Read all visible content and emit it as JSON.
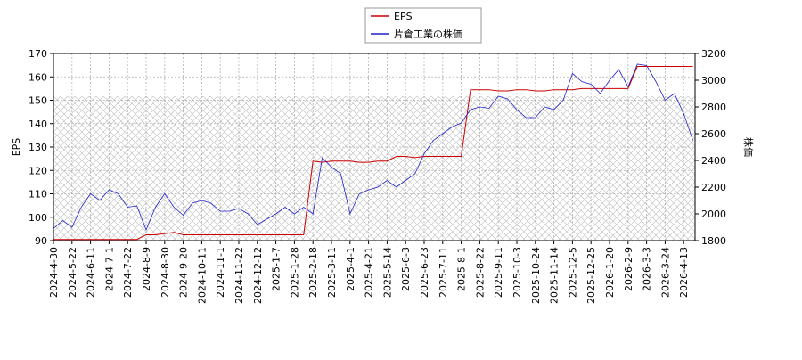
{
  "chart_data": {
    "type": "line",
    "categories": [
      "2024-4-30",
      null,
      "2024-5-22",
      null,
      "2024-6-11",
      null,
      "2024-7-1",
      null,
      "2024-7-22",
      null,
      "2024-8-9",
      null,
      "2024-8-30",
      null,
      "2024-9-20",
      null,
      "2024-10-11",
      null,
      "2024-11-1",
      null,
      "2024-11-22",
      null,
      "2024-12-12",
      null,
      "2025-1-7",
      null,
      "2025-1-28",
      null,
      "2025-2-18",
      null,
      "2025-3-11",
      null,
      "2025-4-1",
      null,
      "2025-4-21",
      null,
      "2025-5-14",
      null,
      "2025-6-3",
      null,
      "2025-6-23",
      null,
      "2025-7-11",
      null,
      "2025-8-1",
      null,
      "2025-8-22",
      null,
      "2025-9-11",
      null,
      "2025-10-3",
      null,
      "2025-10-24",
      null,
      "2025-11-14",
      null,
      "2025-12-5",
      null,
      "2025-12-25",
      null,
      "2026-1-20",
      null,
      "2026-2-9",
      null,
      "2026-3-3",
      null,
      "2026-3-24",
      null,
      "2026-4-13",
      null
    ],
    "series": [
      {
        "name": "EPS",
        "color": "#cc0000",
        "axis": "y",
        "values": [
          90.5,
          90.5,
          90.5,
          90.5,
          90.5,
          90.5,
          90.5,
          90.5,
          90.5,
          90.5,
          92.5,
          92.5,
          93,
          93.5,
          92.5,
          92.5,
          92.5,
          92.5,
          92.5,
          92.5,
          92.5,
          92.5,
          92.5,
          92.5,
          92.5,
          92.5,
          92.5,
          92.5,
          124,
          123.5,
          124,
          124,
          124,
          123.5,
          123.5,
          124,
          124,
          126,
          126,
          125.5,
          126,
          126,
          126,
          126,
          126,
          154.5,
          154.5,
          154.5,
          154,
          154,
          154.5,
          154.5,
          154,
          154,
          154.5,
          154.5,
          154.5,
          155,
          155,
          155,
          155,
          155,
          155,
          164.5,
          164.5,
          164.5,
          164.5,
          164.5,
          164.5,
          164.5
        ]
      },
      {
        "name": "片倉工業の株価",
        "color": "#2222cc",
        "axis": "y2",
        "values": [
          1890,
          1950,
          1900,
          2050,
          2150,
          2100,
          2180,
          2150,
          2050,
          2060,
          1880,
          2050,
          2150,
          2050,
          1990,
          2080,
          2100,
          2080,
          2020,
          2020,
          2040,
          2000,
          1920,
          1960,
          2000,
          2050,
          2000,
          2050,
          2000,
          2420,
          2350,
          2300,
          2000,
          2150,
          2180,
          2200,
          2250,
          2200,
          2250,
          2300,
          2450,
          2550,
          2600,
          2650,
          2680,
          2780,
          2800,
          2790,
          2880,
          2860,
          2780,
          2720,
          2720,
          2800,
          2780,
          2850,
          3050,
          2990,
          2970,
          2900,
          3000,
          3080,
          2950,
          3120,
          3110,
          2990,
          2850,
          2900,
          2750,
          2550
        ]
      }
    ],
    "ylabel": "EPS",
    "y2label": "株価",
    "ylim": [
      90,
      170
    ],
    "yticks": [
      90,
      100,
      110,
      120,
      130,
      140,
      150,
      160,
      170
    ],
    "y2lim": [
      1800,
      3200
    ],
    "y2ticks": [
      1800,
      2000,
      2200,
      2400,
      2600,
      2800,
      3000,
      3200
    ],
    "grid": true,
    "legend": "top"
  }
}
